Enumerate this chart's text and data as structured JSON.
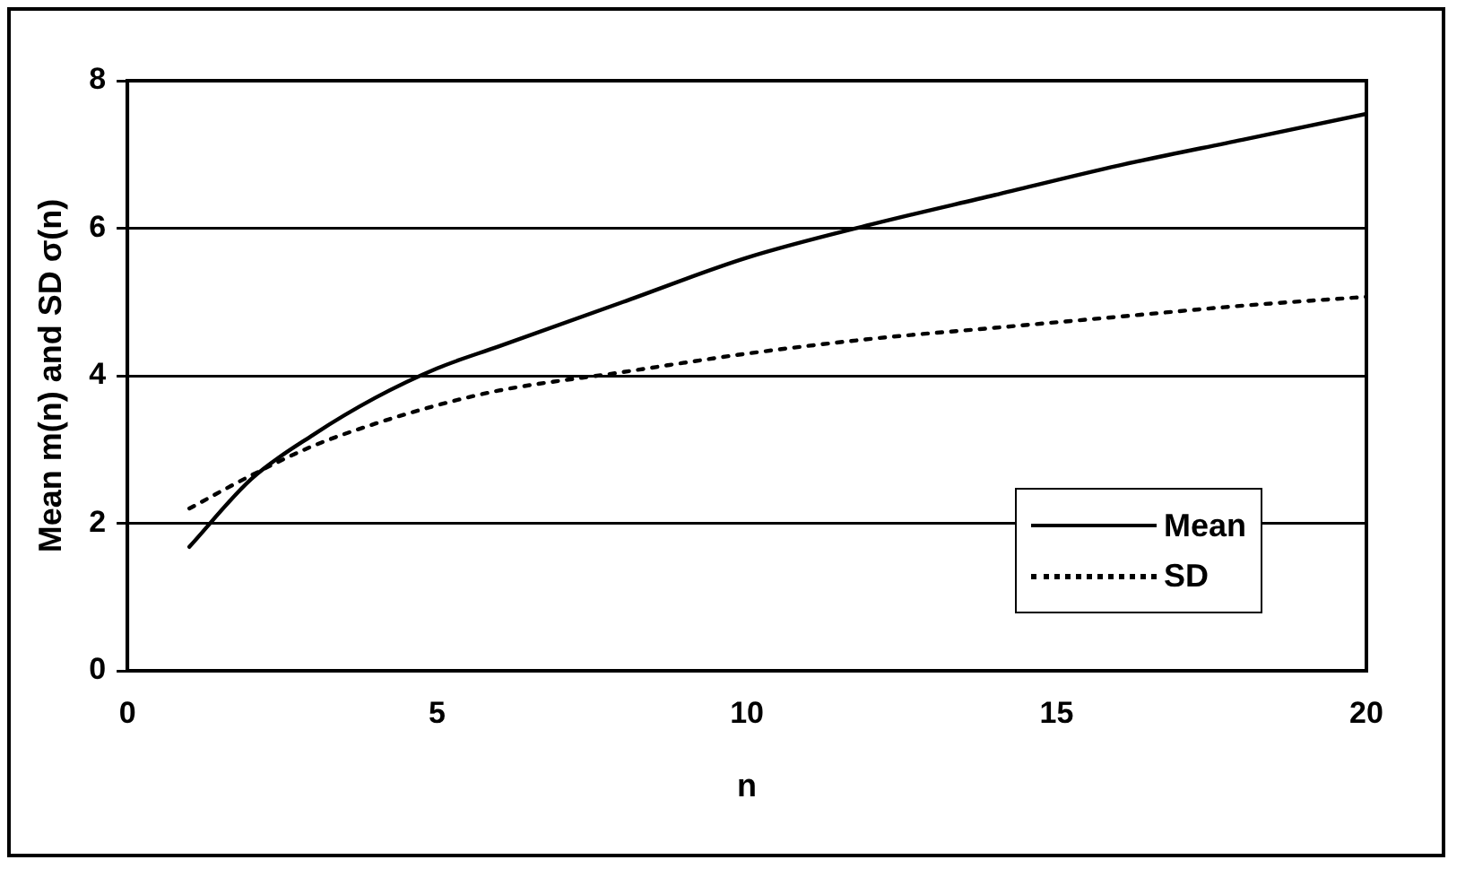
{
  "chart_data": {
    "type": "line",
    "xlabel": "n",
    "ylabel": "Mean m(n) and SD σ(n)",
    "x": [
      1,
      2,
      3,
      4,
      5,
      6,
      8,
      10,
      12,
      14,
      16,
      18,
      20
    ],
    "series": [
      {
        "name": "Mean",
        "color": "#000000",
        "line_style": "solid",
        "values": [
          1.68,
          2.6,
          3.2,
          3.7,
          4.1,
          4.4,
          5.0,
          5.6,
          6.05,
          6.45,
          6.85,
          7.2,
          7.55
        ]
      },
      {
        "name": "SD",
        "color": "#000000",
        "line_style": "dotted",
        "values": [
          2.2,
          2.65,
          3.05,
          3.35,
          3.6,
          3.8,
          4.05,
          4.3,
          4.5,
          4.65,
          4.8,
          4.95,
          5.07
        ]
      }
    ],
    "xlim": [
      0,
      20
    ],
    "xticks": [
      0,
      5,
      10,
      15,
      20
    ],
    "ylim": [
      0,
      8
    ],
    "yticks": [
      0,
      2,
      4,
      6,
      8
    ],
    "grid": "y",
    "legend": "bottom right",
    "marker": "none"
  }
}
